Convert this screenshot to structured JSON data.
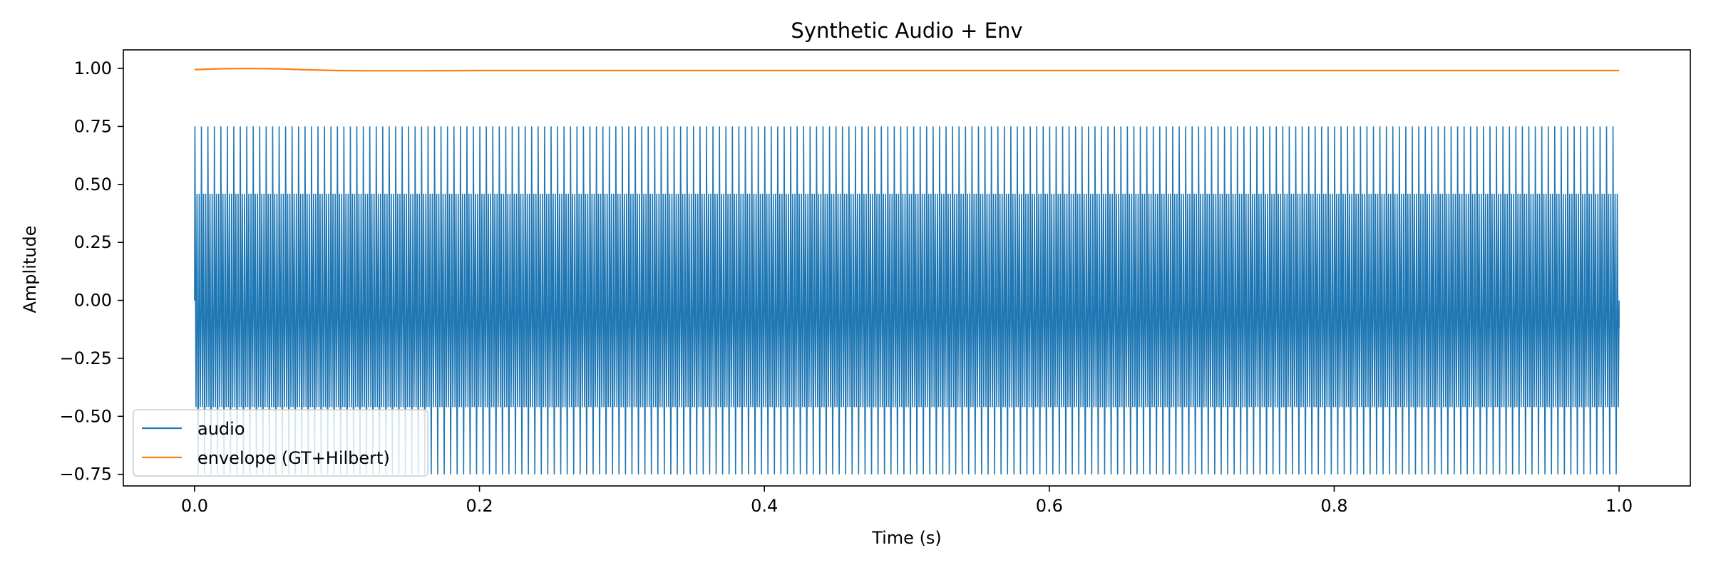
{
  "chart_data": {
    "type": "line",
    "title": "Synthetic Audio + Env",
    "xlabel": "Time (s)",
    "ylabel": "Amplitude",
    "xlim": [
      -0.05,
      1.05
    ],
    "ylim": [
      -0.8,
      1.08
    ],
    "x_ticks": [
      0.0,
      0.2,
      0.4,
      0.6,
      0.8,
      1.0
    ],
    "x_tick_labels": [
      "0.0",
      "0.2",
      "0.4",
      "0.6",
      "0.8",
      "1.0"
    ],
    "y_ticks": [
      -0.75,
      -0.5,
      -0.25,
      0.0,
      0.25,
      0.5,
      0.75,
      1.0
    ],
    "y_tick_labels": [
      "−0.75",
      "−0.50",
      "−0.25",
      "0.00",
      "0.25",
      "0.50",
      "0.75",
      "1.00"
    ],
    "grid": false,
    "legend_position": "lower-left",
    "series": [
      {
        "name": "audio",
        "color": "#1f77b4",
        "kind": "oscillating signal",
        "x_range": [
          0.0,
          1.0
        ],
        "cycles": 220,
        "amplitude": 0.75,
        "inner_amplitude": 0.46
      },
      {
        "name": "envelope (GT+Hilbert)",
        "color": "#ff7f0e",
        "x": [
          0.0,
          0.02,
          0.04,
          0.06,
          0.08,
          0.1,
          0.12,
          0.15,
          0.2,
          0.3,
          0.5,
          0.7,
          0.9,
          1.0
        ],
        "y": [
          0.995,
          0.999,
          1.0,
          0.998,
          0.994,
          0.991,
          0.99,
          0.99,
          0.991,
          0.991,
          0.991,
          0.991,
          0.991,
          0.991
        ]
      }
    ]
  }
}
